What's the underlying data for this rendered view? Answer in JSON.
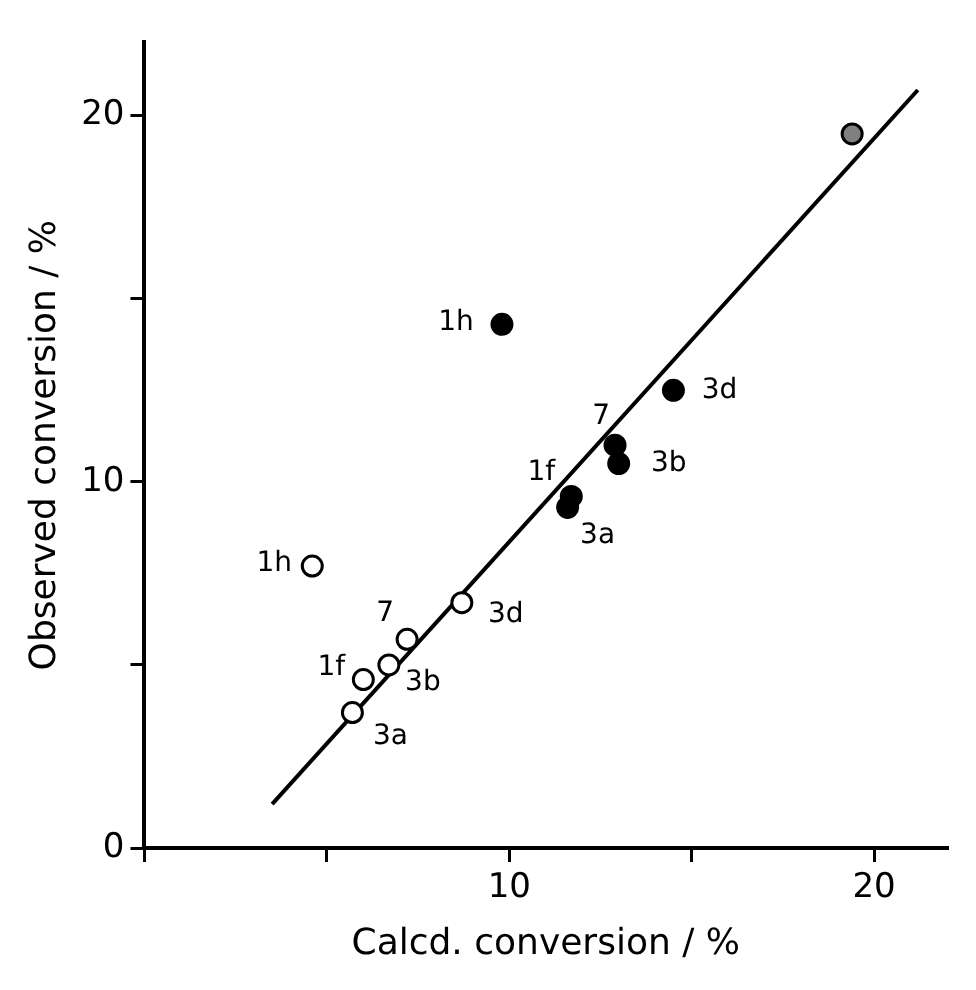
{
  "chart_data": {
    "type": "scatter",
    "xlabel": "Calcd. conversion / %",
    "ylabel": "Observed conversion / %",
    "xlim": [
      0,
      22
    ],
    "ylim": [
      0,
      22
    ],
    "xticks": [
      {
        "value": 0,
        "label": null
      },
      {
        "value": 5,
        "label": null
      },
      10,
      {
        "value": 15,
        "label": null
      },
      20
    ],
    "yticks": [
      0,
      {
        "value": 5,
        "label": null
      },
      10,
      {
        "value": 15,
        "label": null
      },
      20
    ],
    "grid": false,
    "legend": false,
    "marker": "circle",
    "series": [
      {
        "color": "#000000",
        "x": [
          9.8,
          14.5,
          12.9,
          13.0,
          11.7,
          11.6
        ],
        "values": [
          14.3,
          12.5,
          11.0,
          10.5,
          9.6,
          9.3
        ]
      },
      {
        "color": "#ffffff",
        "x": [
          4.6,
          8.7,
          7.2,
          6.7,
          6.0,
          5.7
        ],
        "values": [
          7.7,
          6.7,
          5.7,
          5.0,
          4.6,
          3.7
        ]
      },
      {
        "color": "#808080",
        "x": [
          19.4
        ],
        "values": [
          19.5
        ]
      },
      {
        "type": "line",
        "color": "#000000",
        "marker": "none",
        "x": [
          3.5,
          21.2
        ],
        "values": [
          1.2,
          20.7
        ]
      }
    ],
    "annotations": [
      {
        "text": "1h",
        "x": 9.8,
        "y": 14.3
      },
      {
        "text": "3d",
        "x": 14.5,
        "y": 12.5
      },
      {
        "text": "7",
        "x": 12.9,
        "y": 11.0
      },
      {
        "text": "3b",
        "x": 13.0,
        "y": 10.5
      },
      {
        "text": "1f",
        "x": 11.7,
        "y": 9.6
      },
      {
        "text": "3a",
        "x": 11.6,
        "y": 9.3
      },
      {
        "text": "1h",
        "x": 4.6,
        "y": 7.7
      },
      {
        "text": "3d",
        "x": 8.7,
        "y": 6.7
      },
      {
        "text": "7",
        "x": 7.2,
        "y": 5.7
      },
      {
        "text": "3b",
        "x": 6.7,
        "y": 5.0
      },
      {
        "text": "1f",
        "x": 6.0,
        "y": 4.6
      },
      {
        "text": "3a",
        "x": 5.7,
        "y": 3.7
      }
    ]
  }
}
